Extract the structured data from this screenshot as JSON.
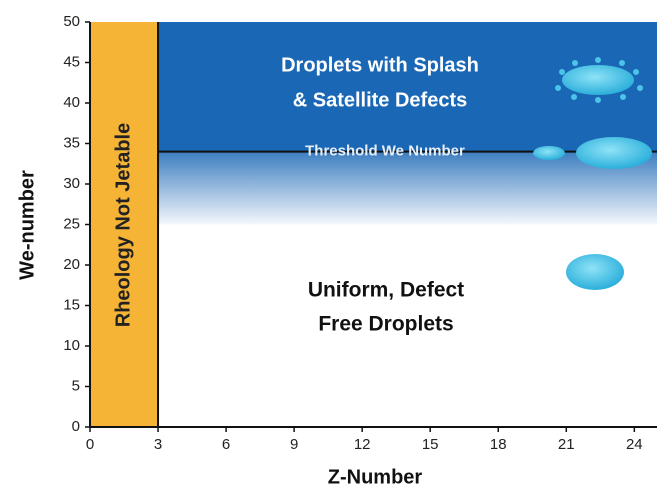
{
  "chart_data": {
    "type": "regime-map",
    "xlabel": "Z-Number",
    "ylabel": "We-number",
    "xlim": [
      0,
      25
    ],
    "ylim": [
      0,
      50
    ],
    "xticks": [
      0,
      3,
      6,
      9,
      12,
      15,
      18,
      21,
      24
    ],
    "yticks": [
      0,
      5,
      10,
      15,
      20,
      25,
      30,
      35,
      40,
      45,
      50
    ],
    "threshold": 34,
    "threshold_label": "Threshold We Number",
    "regions": [
      {
        "lines": [
          "Rheology Not Jetable"
        ],
        "x": [
          0,
          3
        ],
        "y": [
          0,
          50
        ],
        "color": "#f6b436"
      },
      {
        "lines": [
          "Droplets with Splash",
          "& Satellite Defects"
        ],
        "x": [
          3,
          25
        ],
        "y": [
          34,
          50
        ],
        "color": "#1a67b5"
      },
      {
        "x": [
          3,
          25
        ],
        "y": [
          25,
          34
        ],
        "color": "#1a67b5"
      },
      {
        "lines": [
          "Uniform, Defect",
          "Free Droplets"
        ],
        "x": [
          3,
          25
        ],
        "y": [
          0,
          25
        ],
        "color": "#ffffff"
      }
    ]
  }
}
